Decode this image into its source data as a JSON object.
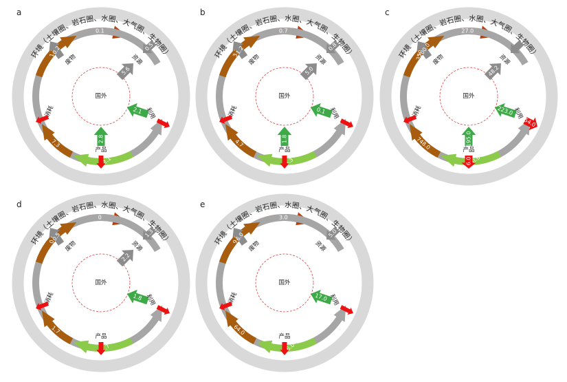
{
  "labels": {
    "ring": "环境（土壤圈、岩石圈、水圈、大气圈、生物圈）",
    "center": "国外",
    "waste": "废物",
    "resource": "资源",
    "use": "利用",
    "consume": "消耗",
    "product": "产品"
  },
  "colors": {
    "ring": "#d9d9d9",
    "dark_orange": "#b5400f",
    "brown": "#a85c0e",
    "gray": "#8c8c8c",
    "light_gray": "#a6a6a6",
    "green": "#3daa47",
    "light_green": "#8ccb4a",
    "red": "#ee1111",
    "center_circle": "#d94040"
  },
  "panels": [
    {
      "id": "a",
      "letter": "a",
      "values": {
        "top": "0.1",
        "waste": "0.2",
        "resource_in": "0.5",
        "right": "10.0",
        "inner": "5.6",
        "import": "2.1",
        "bottom_right": "12.1",
        "product": "2.8",
        "bottom_left": "7.3",
        "left": "1.2"
      },
      "product_export": "",
      "use_export": ""
    },
    {
      "id": "b",
      "letter": "b",
      "values": {
        "top": "0.7",
        "waste": "1.2",
        "resource_in": "0.8",
        "right": "5.6",
        "inner": "5.0",
        "import": "0.1",
        "bottom_right": "6.3",
        "product": "1.8",
        "bottom_left": "4.7",
        "left": "3.3"
      },
      "product_export": "",
      "use_export": ""
    },
    {
      "id": "c",
      "letter": "c",
      "values": {
        "top": "27.0",
        "waste": "200.0",
        "resource_in": "",
        "right": "773.0",
        "inner": "48.2",
        "import": "223.0",
        "bottom_right": "940.0",
        "product": "195.0",
        "bottom_left": "748.0",
        "left": "350.0"
      },
      "product_export": "6.0",
      "use_export": "54.0"
    },
    {
      "id": "d",
      "letter": "d",
      "values": {
        "top": "0",
        "waste": "0.5",
        "resource_in": "1.3",
        "right": "3.5",
        "inner": "2.2",
        "import": "1.8",
        "bottom_right": "1.7",
        "product": "",
        "bottom_left": "1.7",
        "left": "0.5"
      },
      "product_export": "",
      "use_export": ""
    },
    {
      "id": "e",
      "letter": "e",
      "values": {
        "top": "3.0",
        "waste": "6.0",
        "resource_in": "5.0",
        "right": "85.0",
        "inner": "",
        "import": "17.0",
        "bottom_right": "66.0",
        "product": "",
        "bottom_left": "64.0",
        "left": "9.0"
      },
      "product_export": "",
      "use_export": ""
    }
  ]
}
